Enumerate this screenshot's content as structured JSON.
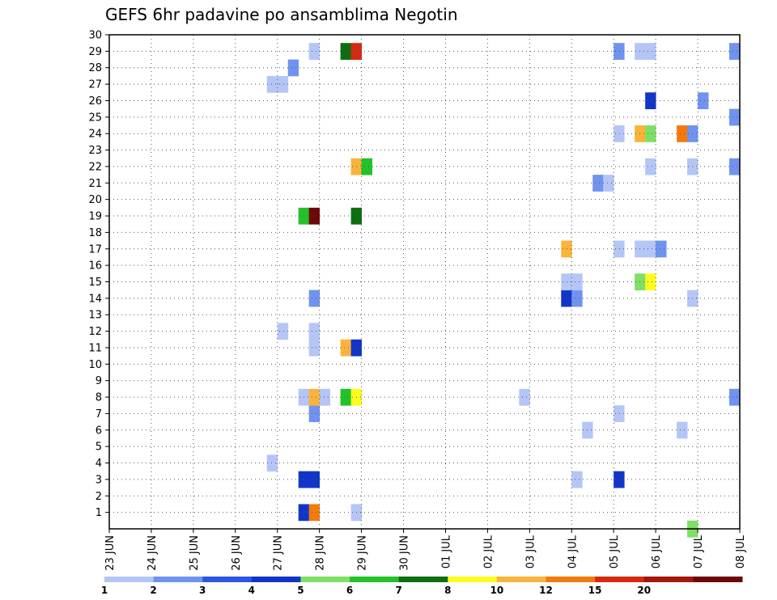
{
  "chart_data": {
    "type": "heatmap",
    "title": "GEFS 6hr padavine po ansamblima Negotin",
    "xlabel": "",
    "ylabel": "",
    "x_ticks": [
      "23 JUN",
      "24 JUN",
      "25 JUN",
      "26 JUN",
      "27 JUN",
      "28 JUN",
      "29 JUN",
      "30 JUN",
      "01 JUL",
      "02 JUL",
      "03 JUL",
      "04 JUL",
      "05 JUL",
      "06 JUL",
      "07 JUL",
      "08 JUL"
    ],
    "x_range_hours_from_23jun": [
      0,
      360
    ],
    "y_ticks": [
      "1",
      "2",
      "3",
      "4",
      "5",
      "6",
      "7",
      "8",
      "9",
      "10",
      "11",
      "12",
      "13",
      "14",
      "15",
      "16",
      "17",
      "18",
      "19",
      "20",
      "21",
      "22",
      "23",
      "24",
      "25",
      "26",
      "27",
      "28",
      "29",
      "30"
    ],
    "y_range": [
      0,
      30
    ],
    "grid": "dotted",
    "colorbar": {
      "colors": [
        "#b4c6f6",
        "#6f93ef",
        "#2a56e4",
        "#1235c9",
        "#7ee066",
        "#22c22a",
        "#0d6e14",
        "#fcfc1e",
        "#fab43a",
        "#f47a0c",
        "#d62a10",
        "#a6140c",
        "#6e0808"
      ],
      "labels": [
        "1",
        "2",
        "3",
        "4",
        "5",
        "6",
        "7",
        "8",
        "10",
        "12",
        "15",
        "20"
      ]
    },
    "cells": [
      {
        "m": 1,
        "t": 111,
        "c": 3
      },
      {
        "m": 1,
        "t": 117,
        "c": 9
      },
      {
        "m": 1,
        "t": 141,
        "c": 0
      },
      {
        "m": 3,
        "t": 111,
        "c": 3
      },
      {
        "m": 3,
        "t": 117,
        "c": 3
      },
      {
        "m": 3,
        "t": 267,
        "c": 0
      },
      {
        "m": 3,
        "t": 291,
        "c": 3
      },
      {
        "m": 4,
        "t": 93,
        "c": 0
      },
      {
        "m": 6,
        "t": 273,
        "c": 0
      },
      {
        "m": 6,
        "t": 327,
        "c": 0
      },
      {
        "m": 7,
        "t": 117,
        "c": 1
      },
      {
        "m": 7,
        "t": 291,
        "c": 0
      },
      {
        "m": 8,
        "t": 111,
        "c": 0
      },
      {
        "m": 8,
        "t": 117,
        "c": 8
      },
      {
        "m": 8,
        "t": 123,
        "c": 0
      },
      {
        "m": 8,
        "t": 135,
        "c": 5
      },
      {
        "m": 8,
        "t": 141,
        "c": 7
      },
      {
        "m": 8,
        "t": 237,
        "c": 0
      },
      {
        "m": 8,
        "t": 357,
        "c": 1
      },
      {
        "m": 11,
        "t": 117,
        "c": 0
      },
      {
        "m": 11,
        "t": 135,
        "c": 8
      },
      {
        "m": 11,
        "t": 141,
        "c": 3
      },
      {
        "m": 12,
        "t": 99,
        "c": 0
      },
      {
        "m": 12,
        "t": 117,
        "c": 0
      },
      {
        "m": 14,
        "t": 117,
        "c": 1
      },
      {
        "m": 14,
        "t": 261,
        "c": 3
      },
      {
        "m": 14,
        "t": 267,
        "c": 1
      },
      {
        "m": 14,
        "t": 333,
        "c": 0
      },
      {
        "m": 15,
        "t": 261,
        "c": 0
      },
      {
        "m": 15,
        "t": 267,
        "c": 0
      },
      {
        "m": 15,
        "t": 303,
        "c": 4
      },
      {
        "m": 15,
        "t": 309,
        "c": 7
      },
      {
        "m": 17,
        "t": 261,
        "c": 8
      },
      {
        "m": 17,
        "t": 291,
        "c": 0
      },
      {
        "m": 17,
        "t": 303,
        "c": 0
      },
      {
        "m": 17,
        "t": 309,
        "c": 0
      },
      {
        "m": 17,
        "t": 315,
        "c": 1
      },
      {
        "m": 19,
        "t": 111,
        "c": 5
      },
      {
        "m": 19,
        "t": 117,
        "c": 12
      },
      {
        "m": 19,
        "t": 141,
        "c": 6
      },
      {
        "m": 21,
        "t": 279,
        "c": 1
      },
      {
        "m": 21,
        "t": 285,
        "c": 0
      },
      {
        "m": 22,
        "t": 141,
        "c": 8
      },
      {
        "m": 22,
        "t": 147,
        "c": 5
      },
      {
        "m": 22,
        "t": 309,
        "c": 0
      },
      {
        "m": 22,
        "t": 333,
        "c": 0
      },
      {
        "m": 22,
        "t": 357,
        "c": 1
      },
      {
        "m": 24,
        "t": 291,
        "c": 0
      },
      {
        "m": 24,
        "t": 303,
        "c": 8
      },
      {
        "m": 24,
        "t": 309,
        "c": 4
      },
      {
        "m": 24,
        "t": 327,
        "c": 9
      },
      {
        "m": 24,
        "t": 333,
        "c": 1
      },
      {
        "m": 25,
        "t": 357,
        "c": 1
      },
      {
        "m": 26,
        "t": 309,
        "c": 3
      },
      {
        "m": 26,
        "t": 339,
        "c": 1
      },
      {
        "m": 27,
        "t": 93,
        "c": 0
      },
      {
        "m": 27,
        "t": 99,
        "c": 0
      },
      {
        "m": 28,
        "t": 105,
        "c": 1
      },
      {
        "m": 29,
        "t": 117,
        "c": 0
      },
      {
        "m": 29,
        "t": 135,
        "c": 6
      },
      {
        "m": 29,
        "t": 141,
        "c": 10
      },
      {
        "m": 29,
        "t": 291,
        "c": 1
      },
      {
        "m": 29,
        "t": 303,
        "c": 0
      },
      {
        "m": 29,
        "t": 309,
        "c": 0
      },
      {
        "m": 29,
        "t": 357,
        "c": 1
      },
      {
        "m": 0,
        "t": 333,
        "c": 4
      }
    ]
  }
}
